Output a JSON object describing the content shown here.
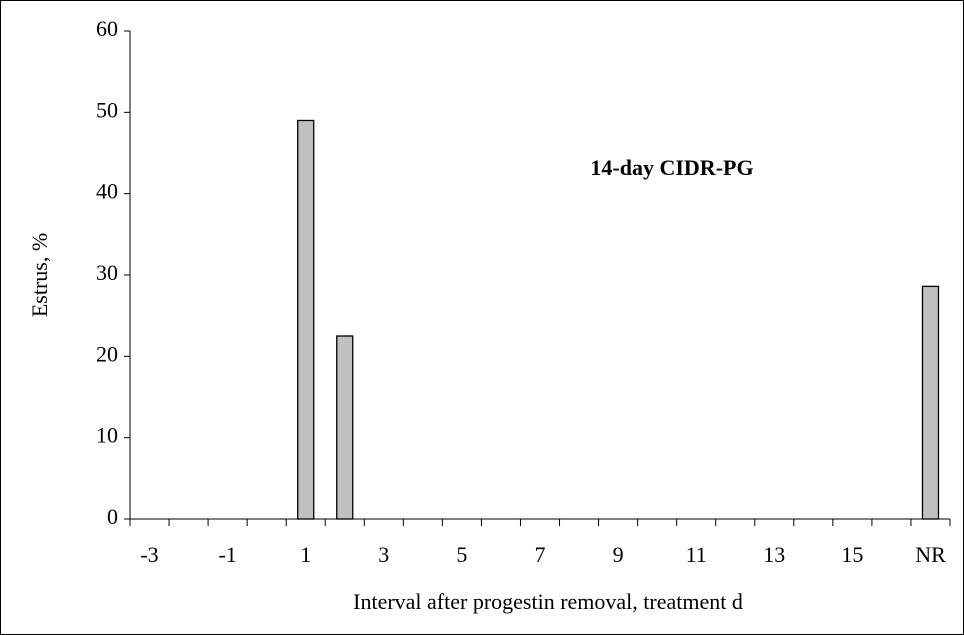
{
  "chart_data": {
    "type": "bar",
    "annotation": "14-day CIDR-PG",
    "xlabel": "Interval after progestin removal, treatment d",
    "ylabel": "Estrus, %",
    "categories": [
      "-3",
      null,
      "-1",
      null,
      "1",
      null,
      "3",
      null,
      "5",
      null,
      "7",
      null,
      "9",
      null,
      "11",
      null,
      "13",
      null,
      "15",
      null,
      "NR"
    ],
    "values": [
      0,
      0,
      0,
      0,
      49,
      22.5,
      0,
      0,
      0,
      0,
      0,
      0,
      0,
      0,
      0,
      0,
      0,
      0,
      0,
      0,
      28.6
    ],
    "color": "#c0c0c0",
    "ylim": [
      0,
      60
    ],
    "yticks": [
      0,
      10,
      20,
      30,
      40,
      50,
      60
    ],
    "grid": false
  }
}
